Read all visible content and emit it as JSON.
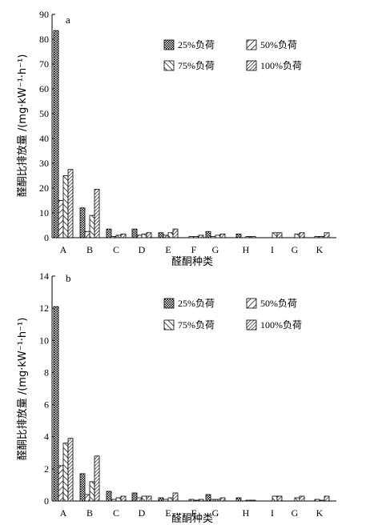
{
  "patterns": {
    "p25": "dense-checker",
    "p50": "backslash-hatch",
    "p75": "forward-slash-hatch",
    "p100": "dense-backslash-hatch"
  },
  "chart_data": [
    {
      "type": "bar",
      "panel_label": "a",
      "categories": [
        "A",
        "B",
        "C",
        "D",
        "E",
        "F",
        "G",
        "H",
        "I",
        "G",
        "K"
      ],
      "series": [
        {
          "name": "25%负荷",
          "values": [
            83.5,
            12.0,
            3.5,
            3.5,
            2.0,
            0.0,
            2.5,
            1.5,
            0.0,
            0.0,
            0.0
          ]
        },
        {
          "name": "50%负荷",
          "values": [
            15.0,
            2.5,
            0.5,
            1.0,
            1.0,
            0.5,
            0.5,
            0.0,
            0.0,
            0.0,
            0.5
          ]
        },
        {
          "name": "75%负荷",
          "values": [
            25.0,
            9.0,
            1.0,
            1.5,
            2.0,
            0.5,
            1.0,
            0.5,
            2.0,
            1.5,
            0.5
          ]
        },
        {
          "name": "100%负荷",
          "values": [
            27.5,
            19.5,
            1.5,
            2.0,
            3.5,
            1.0,
            1.5,
            0.5,
            2.0,
            2.0,
            2.0
          ]
        }
      ],
      "ylabel": "醛酮比排放量 /(mg·kW⁻¹·h⁻¹)",
      "xlabel": "醛酮种类",
      "ylim": [
        0,
        90
      ],
      "yticks": [
        "0",
        "10",
        "20",
        "30",
        "40",
        "50",
        "60",
        "70",
        "80",
        "90"
      ],
      "legend_position": "top-right",
      "grid": false
    },
    {
      "type": "bar",
      "panel_label": "b",
      "categories": [
        "A",
        "B",
        "C",
        "D",
        "E",
        "F",
        "G",
        "H",
        "I",
        "G",
        "K"
      ],
      "series": [
        {
          "name": "25%负荷",
          "values": [
            12.1,
            1.7,
            0.6,
            0.5,
            0.2,
            0.0,
            0.4,
            0.2,
            0.0,
            0.0,
            0.0
          ]
        },
        {
          "name": "50%负荷",
          "values": [
            2.2,
            0.4,
            0.1,
            0.2,
            0.1,
            0.1,
            0.1,
            0.0,
            0.0,
            0.0,
            0.1
          ]
        },
        {
          "name": "75%负荷",
          "values": [
            3.6,
            1.2,
            0.2,
            0.3,
            0.2,
            0.05,
            0.1,
            0.05,
            0.3,
            0.2,
            0.05
          ]
        },
        {
          "name": "100%负荷",
          "values": [
            3.9,
            2.8,
            0.3,
            0.3,
            0.5,
            0.1,
            0.2,
            0.05,
            0.3,
            0.3,
            0.3
          ]
        }
      ],
      "ylabel": "醛酮比排放量 /(mg·kW⁻¹·h⁻¹)",
      "xlabel": "醛酮种类",
      "ylim": [
        0,
        14
      ],
      "yticks": [
        "0",
        "2",
        "4",
        "6",
        "8",
        "10",
        "12",
        "14"
      ],
      "legend_position": "top-right",
      "grid": false
    }
  ]
}
